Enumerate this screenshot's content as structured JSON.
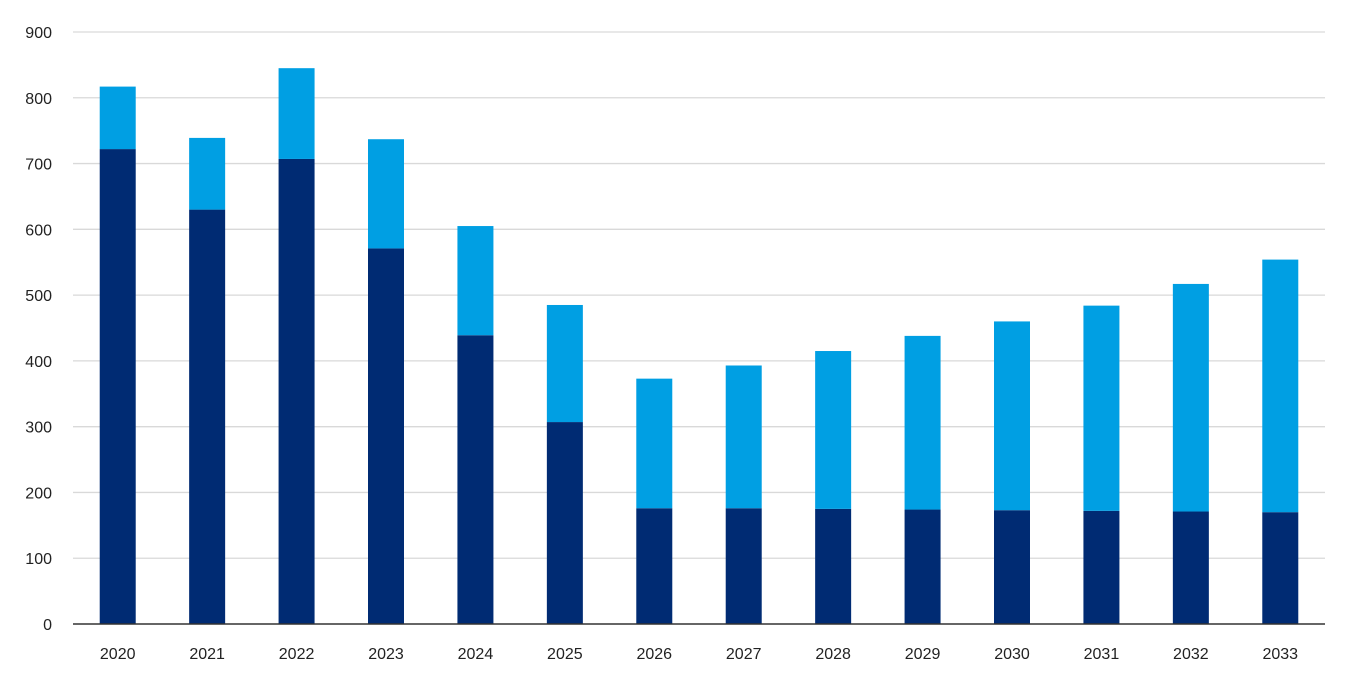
{
  "chart_data": {
    "type": "bar",
    "stacked": true,
    "categories": [
      "2020",
      "2021",
      "2022",
      "2023",
      "2024",
      "2025",
      "2026",
      "2027",
      "2028",
      "2029",
      "2030",
      "2031",
      "2032",
      "2033"
    ],
    "series": [
      {
        "color": "#002b73",
        "values": [
          722,
          630,
          707,
          571,
          439,
          307,
          176,
          176,
          175,
          174,
          173,
          172,
          171,
          170
        ]
      },
      {
        "color": "#009fe3",
        "values": [
          95,
          109,
          138,
          166,
          166,
          178,
          197,
          217,
          240,
          264,
          287,
          312,
          346,
          384
        ]
      }
    ],
    "ylim": [
      0,
      900
    ],
    "yticks": [
      0,
      100,
      200,
      300,
      400,
      500,
      600,
      700,
      800,
      900
    ],
    "grid": "horizontal",
    "title": "",
    "xlabel": "",
    "ylabel": ""
  }
}
